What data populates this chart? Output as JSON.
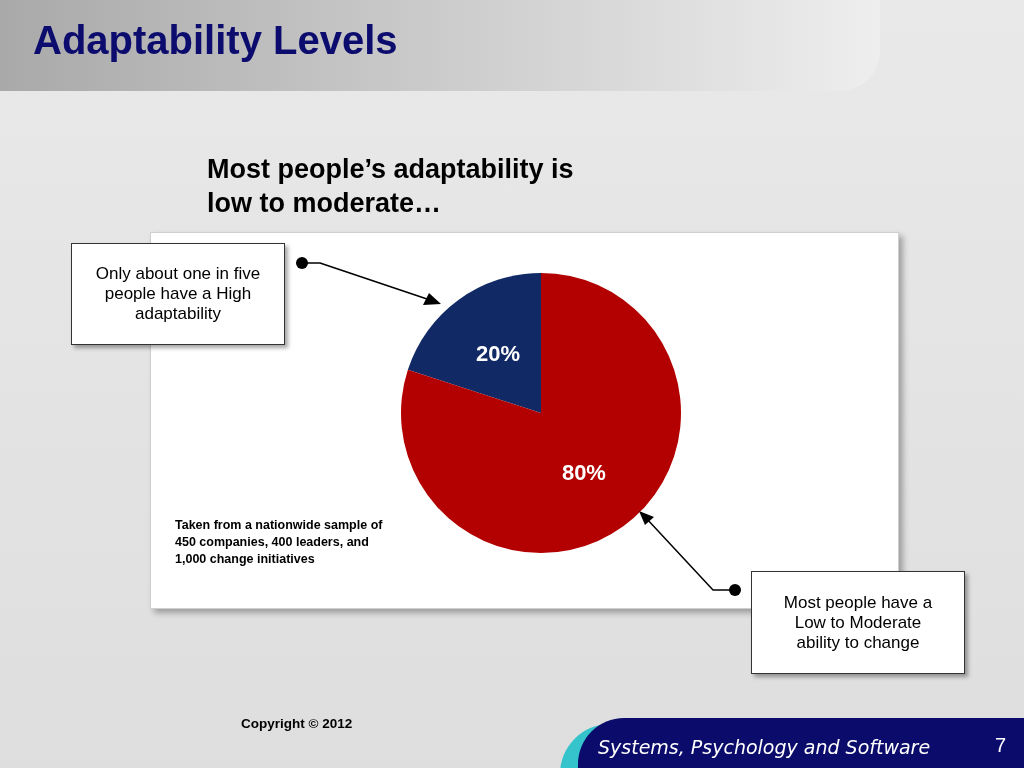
{
  "chart_data": {
    "type": "pie",
    "title": "Adaptability Levels",
    "subtitle": "Most people’s adaptability is low to moderate…",
    "categories": [
      null,
      null
    ],
    "values": [
      20,
      80
    ],
    "colors": [
      "#112a66",
      "#b30000"
    ],
    "value_labels": [
      "20%",
      "80%"
    ],
    "annotations": [
      "Only about one in five people have a High adaptability",
      "Taken from a nationwide sample of 450 companies, 400 leaders, and 1,000 change initiatives",
      "Most people have a Low to Moderate ability to change",
      "Copyright © 2012",
      "Systems, Psychology and Software",
      "7"
    ]
  }
}
